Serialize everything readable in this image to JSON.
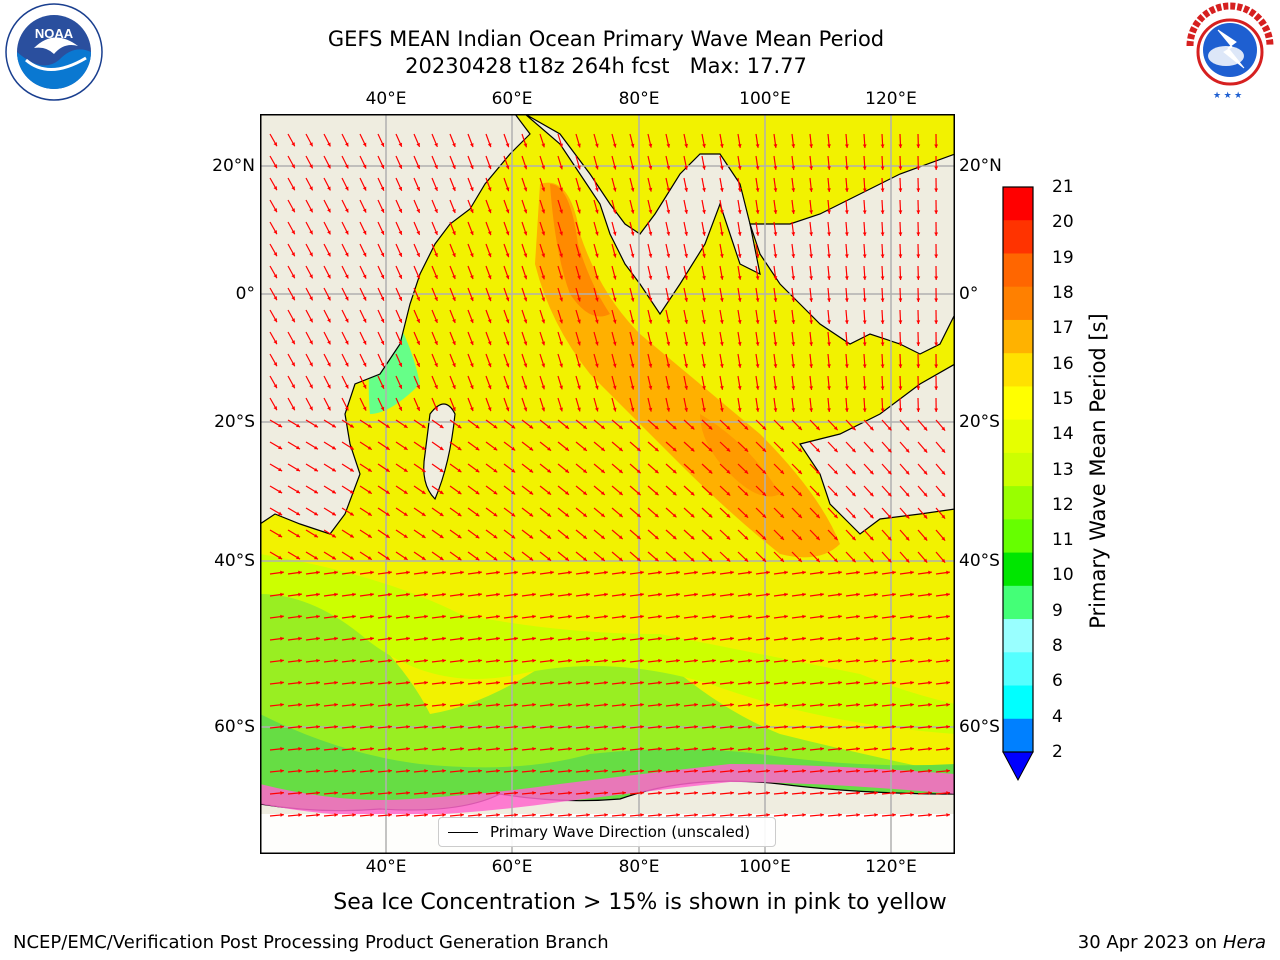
{
  "title": {
    "line1": "GEFS MEAN Indian Ocean Primary Wave Mean Period",
    "line2": "20230428 t18z 264h fcst   Max: 17.77"
  },
  "map": {
    "lon_ticks": [
      "40°E",
      "60°E",
      "80°E",
      "100°E",
      "120°E"
    ],
    "lat_ticks": [
      "20°N",
      "0°",
      "20°S",
      "40°S",
      "60°S"
    ],
    "lon_range": [
      20,
      130
    ],
    "lat_range": [
      -75,
      28
    ],
    "field": "Primary Wave Mean Period",
    "max_value": 17.77,
    "arrow_color": "#ff0000",
    "land_color": "#efede0",
    "ocean_regions": [
      {
        "region": "Southern Ocean near ice edge",
        "period_s": "9-12"
      },
      {
        "region": "Southern mid-latitudes",
        "period_s": "13-15"
      },
      {
        "region": "Central Indian Ocean swath",
        "period_s": "16-17"
      },
      {
        "region": "Arabian Sea / Bay of Bengal",
        "period_s": "14-17"
      },
      {
        "region": "Mozambique Channel / Indonesian seas",
        "period_s": "7-11"
      }
    ]
  },
  "legend": {
    "label": "Primary Wave Direction (unscaled)"
  },
  "colorbar": {
    "label": "Primary Wave Mean Period [s]",
    "ticks": [
      "21",
      "20",
      "19",
      "18",
      "17",
      "16",
      "15",
      "14",
      "13",
      "12",
      "11",
      "10",
      "9",
      "8",
      "6",
      "4",
      "2"
    ],
    "colors_top_to_bottom": [
      "#ff0000",
      "#ff3300",
      "#ff6600",
      "#ff8000",
      "#ffb200",
      "#ffe100",
      "#ffff00",
      "#e6ff00",
      "#ccff00",
      "#99ff00",
      "#66ff00",
      "#00e600",
      "#44ff77",
      "#99ffff",
      "#55ffff",
      "#00ffff",
      "#0080ff"
    ],
    "extend_color": "#0000ff"
  },
  "ice_note": "Sea Ice Concentration > 15% is shown in pink to yellow",
  "footer": {
    "left": "NCEP/EMC/Verification Post Processing Product Generation Branch",
    "right_date": "30 Apr 2023 on ",
    "right_machine": "Hera"
  },
  "logos": {
    "noaa": "NOAA",
    "nws": "NATIONAL WEATHER SERVICE"
  }
}
